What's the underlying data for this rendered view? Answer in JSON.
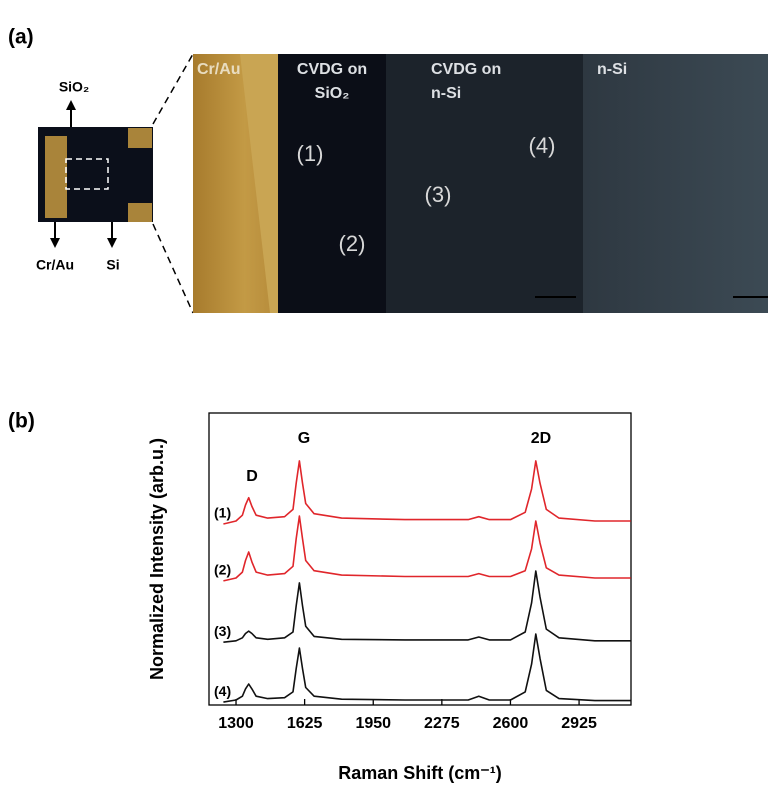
{
  "panel_a": {
    "label": "(a)",
    "schematic_labels": {
      "top": "SiO₂",
      "left": "Cr/Au",
      "right": "Si"
    },
    "regions": [
      {
        "lines": [
          "Cr/Au"
        ]
      },
      {
        "lines": [
          "CVDG on",
          "SiO₂"
        ]
      },
      {
        "lines": [
          "CVDG on",
          "n-Si"
        ]
      },
      {
        "lines": [
          "n-Si"
        ]
      }
    ],
    "spots": [
      "(1)",
      "(2)",
      "(3)",
      "(4)"
    ]
  },
  "panel_b": {
    "label": "(b)"
  },
  "chart_data": {
    "type": "line",
    "x_label": "Raman Shift (cm⁻¹)",
    "y_label": "Normalized Intensity (arb.u.)",
    "annotations": [
      "D",
      "G",
      "2D"
    ],
    "x": [
      1240,
      1300,
      1330,
      1345,
      1360,
      1375,
      1395,
      1450,
      1530,
      1570,
      1585,
      1600,
      1615,
      1630,
      1670,
      1800,
      2100,
      2400,
      2450,
      2500,
      2600,
      2670,
      2700,
      2720,
      2740,
      2770,
      2830,
      3000,
      3170
    ],
    "series": [
      {
        "name": "(1)",
        "color": "#e0262b",
        "values": [
          6.2,
          6.3,
          6.5,
          6.85,
          7.1,
          6.8,
          6.5,
          6.4,
          6.45,
          6.7,
          7.6,
          8.36,
          7.6,
          6.9,
          6.55,
          6.4,
          6.35,
          6.35,
          6.45,
          6.35,
          6.35,
          6.6,
          7.4,
          8.36,
          7.6,
          6.7,
          6.4,
          6.3,
          6.3
        ]
      },
      {
        "name": "(2)",
        "color": "#e0262b",
        "values": [
          4.25,
          4.35,
          4.55,
          4.95,
          5.24,
          4.9,
          4.55,
          4.45,
          4.5,
          4.75,
          5.7,
          6.47,
          5.7,
          4.95,
          4.6,
          4.45,
          4.4,
          4.4,
          4.5,
          4.4,
          4.4,
          4.6,
          5.35,
          6.3,
          5.55,
          4.7,
          4.45,
          4.35,
          4.35
        ]
      },
      {
        "name": "(3)",
        "color": "#111111",
        "values": [
          2.15,
          2.2,
          2.3,
          2.45,
          2.53,
          2.45,
          2.3,
          2.25,
          2.3,
          2.5,
          3.4,
          4.18,
          3.4,
          2.7,
          2.35,
          2.25,
          2.23,
          2.23,
          2.33,
          2.23,
          2.23,
          2.5,
          3.5,
          4.59,
          3.7,
          2.6,
          2.3,
          2.2,
          2.2
        ]
      },
      {
        "name": "(4)",
        "color": "#111111",
        "values": [
          0.1,
          0.17,
          0.3,
          0.55,
          0.72,
          0.55,
          0.3,
          0.22,
          0.25,
          0.45,
          1.25,
          1.95,
          1.25,
          0.6,
          0.3,
          0.2,
          0.17,
          0.17,
          0.3,
          0.17,
          0.17,
          0.45,
          1.4,
          2.43,
          1.6,
          0.5,
          0.22,
          0.15,
          0.15
        ]
      }
    ],
    "xlim": [
      1172,
      3171
    ],
    "xticks": [
      1300,
      1625,
      1950,
      2275,
      2600,
      2925
    ],
    "ylim": [
      0,
      10
    ]
  }
}
